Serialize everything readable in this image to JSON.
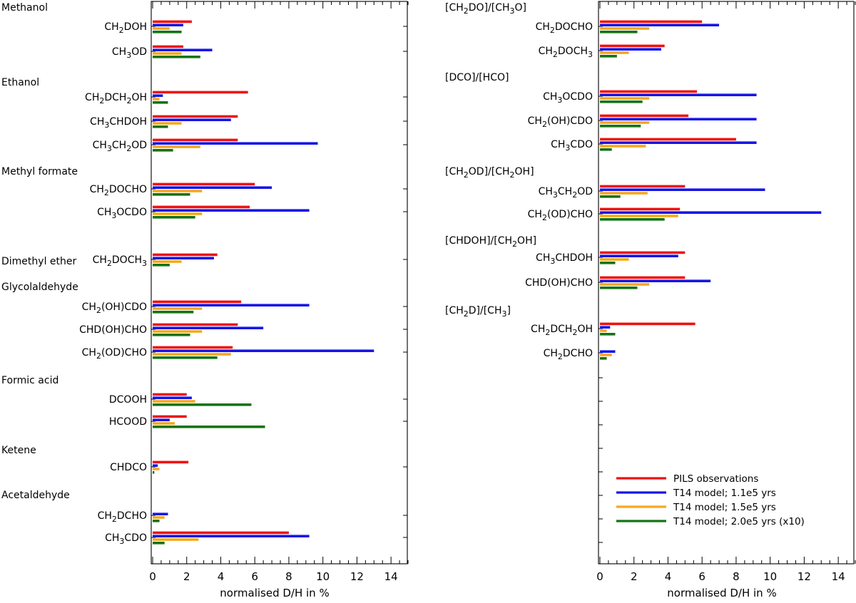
{
  "colors": {
    "pils": "#ee1111",
    "t14_1_1e5": "#1616e6",
    "t14_1_5e5": "#f7a81b",
    "t14_2_0e5": "#147314"
  },
  "chart_data": [
    {
      "type": "bar",
      "orientation": "horizontal",
      "xlabel": "normalised D/H in %",
      "xlim": [
        0,
        15
      ],
      "xticks": [
        "0",
        "2",
        "4",
        "6",
        "8",
        "10",
        "12",
        "14"
      ],
      "groups": [
        {
          "name": "Methanol",
          "species": [
            {
              "label": "CH2DOH",
              "values": [
                2.3,
                1.8,
                1.0,
                1.7
              ]
            },
            {
              "label": "CH3OD",
              "values": [
                1.8,
                3.5,
                1.7,
                2.8
              ]
            }
          ]
        },
        {
          "name": "Ethanol",
          "species": [
            {
              "label": "CH2DCH2OH",
              "values": [
                5.6,
                0.6,
                0.4,
                0.9
              ]
            },
            {
              "label": "CH3CHDOH",
              "values": [
                5.0,
                4.6,
                1.7,
                0.9
              ]
            },
            {
              "label": "CH3CH2OD",
              "values": [
                5.0,
                9.7,
                2.8,
                1.2
              ]
            }
          ]
        },
        {
          "name": "Methyl formate",
          "species": [
            {
              "label": "CH2DOCHO",
              "values": [
                6.0,
                7.0,
                2.9,
                2.2
              ]
            },
            {
              "label": "CH3OCDO",
              "values": [
                5.7,
                9.2,
                2.9,
                2.5
              ]
            }
          ]
        },
        {
          "name": "Dimethyl ether",
          "species": [
            {
              "label": "CH2DOCH3",
              "values": [
                3.8,
                3.6,
                1.7,
                1.0
              ]
            }
          ]
        },
        {
          "name": "Glycolaldehyde",
          "species": [
            {
              "label": "CH2(OH)CDO",
              "values": [
                5.2,
                9.2,
                2.9,
                2.4
              ]
            },
            {
              "label": "CHD(OH)CHO",
              "values": [
                5.0,
                6.5,
                2.9,
                2.2
              ]
            },
            {
              "label": "CH2(OD)CHO",
              "values": [
                4.7,
                13.0,
                4.6,
                3.8
              ]
            }
          ]
        },
        {
          "name": "Formic acid",
          "species": [
            {
              "label": "DCOOH",
              "values": [
                2.0,
                2.3,
                2.5,
                5.8
              ]
            },
            {
              "label": "HCOOD",
              "values": [
                2.0,
                1.0,
                1.3,
                6.6
              ]
            }
          ]
        },
        {
          "name": "Ketene",
          "species": [
            {
              "label": "CHDCO",
              "values": [
                2.1,
                0.3,
                0.4,
                0.1
              ]
            }
          ]
        },
        {
          "name": "Acetaldehyde",
          "species": [
            {
              "label": "CH2DCHO",
              "values": [
                0.0,
                0.9,
                0.7,
                0.4
              ]
            },
            {
              "label": "CH3CDO",
              "values": [
                8.0,
                9.2,
                2.7,
                0.7
              ]
            }
          ]
        }
      ]
    },
    {
      "type": "bar",
      "orientation": "horizontal",
      "xlabel": "normalised D/H in %",
      "xlim": [
        0,
        15
      ],
      "xticks": [
        "0",
        "2",
        "4",
        "6",
        "8",
        "10",
        "12",
        "14"
      ],
      "groups": [
        {
          "name": "[CH2DO]/[CH3O]",
          "species": [
            {
              "label": "CH2DOCHO",
              "values": [
                6.0,
                7.0,
                2.9,
                2.2
              ]
            },
            {
              "label": "CH2DOCH3",
              "values": [
                3.8,
                3.6,
                1.7,
                1.0
              ]
            }
          ]
        },
        {
          "name": "[DCO]/[HCO]",
          "species": [
            {
              "label": "CH3OCDO",
              "values": [
                5.7,
                9.2,
                2.9,
                2.5
              ]
            },
            {
              "label": "CH2(OH)CDO",
              "values": [
                5.2,
                9.2,
                2.9,
                2.4
              ]
            },
            {
              "label": "CH3CDO",
              "values": [
                8.0,
                9.2,
                2.7,
                0.7
              ]
            }
          ]
        },
        {
          "name": "[CH2OD]/[CH2OH]",
          "species": [
            {
              "label": "CH3CH2OD",
              "values": [
                5.0,
                9.7,
                2.8,
                1.2
              ]
            },
            {
              "label": "CH2(OD)CHO",
              "values": [
                4.7,
                13.0,
                4.6,
                3.8
              ]
            }
          ]
        },
        {
          "name": "[CHDOH]/[CH2OH]",
          "species": [
            {
              "label": "CH3CHDOH",
              "values": [
                5.0,
                4.6,
                1.7,
                0.9
              ]
            },
            {
              "label": "CHD(OH)CHO",
              "values": [
                5.0,
                6.5,
                2.9,
                2.2
              ]
            }
          ]
        },
        {
          "name": "[CH2D]/[CH3]",
          "species": [
            {
              "label": "CH2DCH2OH",
              "values": [
                5.6,
                0.6,
                0.4,
                0.9
              ]
            },
            {
              "label": "CH2DCHO",
              "values": [
                0.0,
                0.9,
                0.7,
                0.4
              ]
            }
          ]
        }
      ]
    }
  ],
  "legend": {
    "position": "bottom-right",
    "entries": [
      {
        "label": "PILS observations",
        "color": "#ee1111"
      },
      {
        "label": "T14 model; 1.1e5 yrs",
        "color": "#1616e6"
      },
      {
        "label": "T14 model; 1.5e5 yrs",
        "color": "#f7a81b"
      },
      {
        "label": "T14 model; 2.0e5 yrs (x10)",
        "color": "#147314"
      }
    ]
  }
}
